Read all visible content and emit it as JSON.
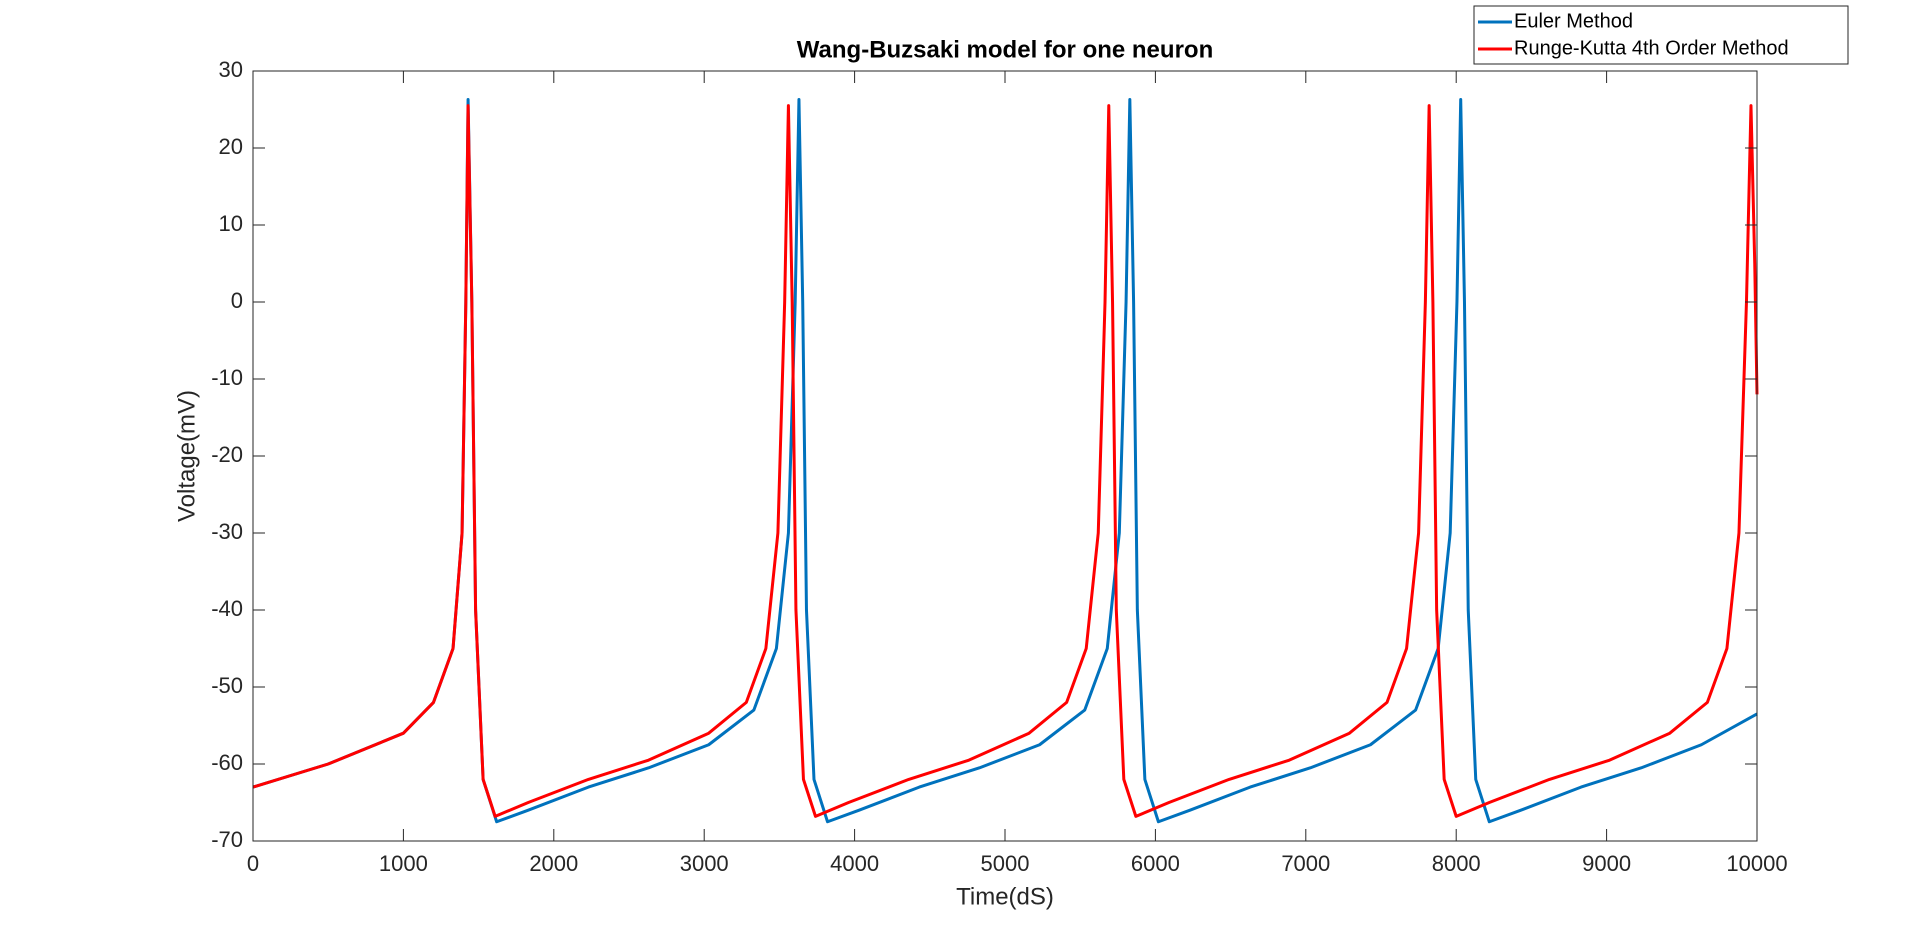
{
  "chart_data": {
    "type": "line",
    "title": "Wang-Buzsaki model for one neuron",
    "x_label": "Time(dS)",
    "y_label": "Voltage(mV)",
    "xlim": [
      0,
      10000
    ],
    "ylim": [
      -70,
      30
    ],
    "xticks": [
      0,
      1000,
      2000,
      3000,
      4000,
      5000,
      6000,
      7000,
      8000,
      9000,
      10000
    ],
    "yticks": [
      -70,
      -60,
      -50,
      -40,
      -30,
      -20,
      -10,
      0,
      10,
      20,
      30
    ],
    "grid": false,
    "legend": "top-right",
    "series": [
      {
        "name": "Euler Method",
        "color": "#0072bd",
        "x": [
          0,
          500,
          1000,
          1200,
          1330,
          1390,
          1415,
          1430,
          1455,
          1480,
          1530,
          1620,
          1830,
          2230,
          2630,
          3030,
          3330,
          3480,
          3560,
          3605,
          3630,
          3655,
          3680,
          3730,
          3820,
          4030,
          4430,
          4830,
          5230,
          5530,
          5680,
          5760,
          5805,
          5830,
          5855,
          5880,
          5930,
          6020,
          6230,
          6630,
          7030,
          7430,
          7730,
          7880,
          7960,
          8005,
          8030,
          8055,
          8080,
          8130,
          8220,
          8430,
          8830,
          9230,
          9630,
          10000
        ],
        "values": [
          -63,
          -60,
          -56,
          -52,
          -45,
          -30,
          0,
          26.3,
          0,
          -40,
          -62,
          -67.5,
          -66,
          -63,
          -60.5,
          -57.5,
          -53,
          -45,
          -30,
          0,
          26.3,
          0,
          -40,
          -62,
          -67.5,
          -66,
          -63,
          -60.5,
          -57.5,
          -53,
          -45,
          -30,
          0,
          26.3,
          0,
          -40,
          -62,
          -67.5,
          -66,
          -63,
          -60.5,
          -57.5,
          -53,
          -45,
          -30,
          0,
          26.3,
          0,
          -40,
          -62,
          -67.5,
          -66,
          -63,
          -60.5,
          -57.5,
          -53.5
        ]
      },
      {
        "name": "Runge-Kutta 4th Order Method",
        "color": "#ff0000",
        "x": [
          0,
          500,
          1000,
          1200,
          1330,
          1390,
          1415,
          1430,
          1455,
          1480,
          1530,
          1610,
          1830,
          2230,
          2630,
          3030,
          3280,
          3410,
          3490,
          3535,
          3560,
          3585,
          3610,
          3660,
          3740,
          3960,
          4360,
          4760,
          5160,
          5410,
          5540,
          5620,
          5665,
          5690,
          5715,
          5740,
          5790,
          5870,
          6090,
          6490,
          6890,
          7290,
          7540,
          7670,
          7750,
          7795,
          7820,
          7845,
          7870,
          7920,
          8000,
          8220,
          8620,
          9020,
          9420,
          9670,
          9800,
          9880,
          9930,
          9960,
          9985,
          10000
        ],
        "values": [
          -63,
          -60,
          -56,
          -52,
          -45,
          -30,
          0,
          25.5,
          0,
          -40,
          -62,
          -66.8,
          -65,
          -62,
          -59.5,
          -56,
          -52,
          -45,
          -30,
          0,
          25.5,
          0,
          -40,
          -62,
          -66.8,
          -65,
          -62,
          -59.5,
          -56,
          -52,
          -45,
          -30,
          0,
          25.5,
          0,
          -40,
          -62,
          -66.8,
          -65,
          -62,
          -59.5,
          -56,
          -52,
          -45,
          -30,
          0,
          25.5,
          0,
          -40,
          -62,
          -66.8,
          -65,
          -62,
          -59.5,
          -56,
          -52,
          -45,
          -30,
          0,
          25.5,
          5,
          -12
        ]
      }
    ]
  }
}
